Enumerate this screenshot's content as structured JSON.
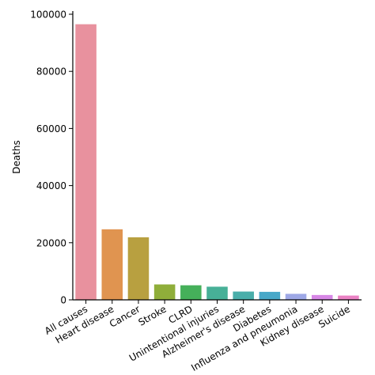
{
  "chart_data": {
    "type": "bar",
    "title": "",
    "xlabel": "",
    "ylabel": "Deaths",
    "categories": [
      "All causes",
      "Heart disease",
      "Cancer",
      "Stroke",
      "CLRD",
      "Unintentional injuries",
      "Alzheimer's disease",
      "Diabetes",
      "Influenza and pneumonia",
      "Kidney disease",
      "Suicide"
    ],
    "values": [
      96500,
      24700,
      21900,
      5400,
      5100,
      4600,
      2900,
      2800,
      2100,
      1700,
      1500
    ],
    "colors": [
      "#e8919e",
      "#e09450",
      "#b8a040",
      "#8fae3a",
      "#45b05a",
      "#47b097",
      "#4aaeaa",
      "#48a8c8",
      "#9ea8e6",
      "#d787e6",
      "#ea82c4"
    ],
    "ylim": [
      0,
      100000
    ],
    "yticks": [
      0,
      20000,
      40000,
      60000,
      80000,
      100000
    ],
    "ytick_labels": [
      "0",
      "20000",
      "40000",
      "60000",
      "80000",
      "100000"
    ],
    "grid": false,
    "legend": "none"
  }
}
